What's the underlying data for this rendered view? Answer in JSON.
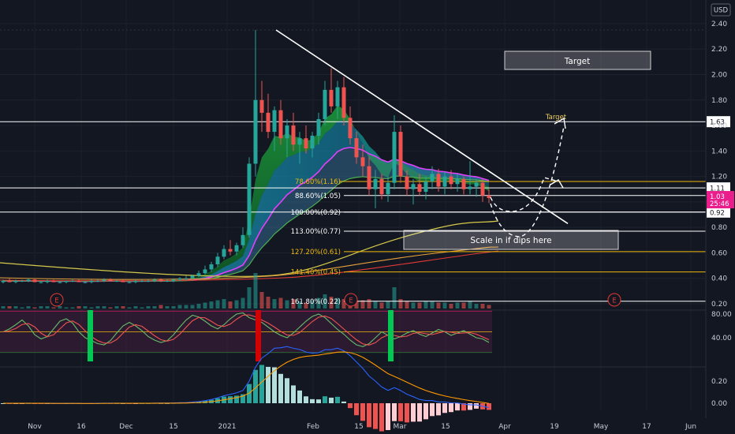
{
  "currency_label": "USD",
  "colors": {
    "up": "#26a69a",
    "down": "#ef5350",
    "bg": "#131722",
    "fib_yellow": "#f0b90b",
    "price_tag": "#e91e8c",
    "macd": "#2962ff",
    "signal": "#ff9800"
  },
  "chart_data": [
    {
      "type": "candlestick",
      "price_axis": [
        "2.40",
        "2.20",
        "2.00",
        "1.80",
        "1.60",
        "1.40",
        "1.20",
        "1.00",
        "0.80",
        "0.60",
        "0.40",
        "0.20"
      ],
      "time_axis": [
        "Nov",
        "16",
        "Dec",
        "15",
        "2021",
        "Feb",
        "15",
        "Mar",
        "15",
        "Apr",
        "19",
        "May",
        "17",
        "Jun"
      ],
      "ylim": [
        0.2,
        2.4
      ],
      "candles": [
        [
          0.37,
          0.39,
          0.36,
          0.38
        ],
        [
          0.38,
          0.4,
          0.37,
          0.37
        ],
        [
          0.37,
          0.39,
          0.36,
          0.38
        ],
        [
          0.38,
          0.39,
          0.37,
          0.38
        ],
        [
          0.38,
          0.4,
          0.37,
          0.39
        ],
        [
          0.39,
          0.4,
          0.37,
          0.37
        ],
        [
          0.37,
          0.38,
          0.36,
          0.37
        ],
        [
          0.37,
          0.39,
          0.36,
          0.38
        ],
        [
          0.38,
          0.39,
          0.37,
          0.37
        ],
        [
          0.37,
          0.38,
          0.36,
          0.37
        ],
        [
          0.37,
          0.38,
          0.36,
          0.38
        ],
        [
          0.38,
          0.39,
          0.37,
          0.38
        ],
        [
          0.38,
          0.39,
          0.37,
          0.37
        ],
        [
          0.37,
          0.38,
          0.36,
          0.37
        ],
        [
          0.37,
          0.39,
          0.36,
          0.38
        ],
        [
          0.38,
          0.39,
          0.37,
          0.38
        ],
        [
          0.38,
          0.4,
          0.37,
          0.39
        ],
        [
          0.39,
          0.4,
          0.38,
          0.38
        ],
        [
          0.38,
          0.39,
          0.37,
          0.38
        ],
        [
          0.38,
          0.39,
          0.37,
          0.37
        ],
        [
          0.37,
          0.38,
          0.36,
          0.37
        ],
        [
          0.37,
          0.39,
          0.36,
          0.38
        ],
        [
          0.38,
          0.39,
          0.37,
          0.38
        ],
        [
          0.38,
          0.39,
          0.37,
          0.38
        ],
        [
          0.38,
          0.4,
          0.37,
          0.39
        ],
        [
          0.39,
          0.4,
          0.37,
          0.38
        ],
        [
          0.38,
          0.39,
          0.37,
          0.38
        ],
        [
          0.38,
          0.4,
          0.37,
          0.39
        ],
        [
          0.39,
          0.41,
          0.38,
          0.4
        ],
        [
          0.4,
          0.42,
          0.39,
          0.4
        ],
        [
          0.4,
          0.43,
          0.39,
          0.42
        ],
        [
          0.42,
          0.46,
          0.41,
          0.44
        ],
        [
          0.44,
          0.5,
          0.43,
          0.47
        ],
        [
          0.47,
          0.53,
          0.45,
          0.51
        ],
        [
          0.51,
          0.6,
          0.49,
          0.57
        ],
        [
          0.57,
          0.66,
          0.55,
          0.63
        ],
        [
          0.63,
          0.7,
          0.58,
          0.61
        ],
        [
          0.61,
          0.68,
          0.58,
          0.66
        ],
        [
          0.66,
          0.8,
          0.64,
          0.74
        ],
        [
          0.74,
          1.35,
          0.72,
          1.3
        ],
        [
          1.3,
          2.35,
          1.2,
          1.8
        ],
        [
          1.8,
          1.95,
          1.55,
          1.7
        ],
        [
          1.7,
          1.85,
          1.5,
          1.55
        ],
        [
          1.55,
          1.75,
          1.4,
          1.72
        ],
        [
          1.72,
          1.8,
          1.45,
          1.5
        ],
        [
          1.5,
          1.65,
          1.35,
          1.6
        ],
        [
          1.6,
          1.7,
          1.4,
          1.45
        ],
        [
          1.45,
          1.55,
          1.3,
          1.5
        ],
        [
          1.5,
          1.6,
          1.38,
          1.42
        ],
        [
          1.42,
          1.55,
          1.35,
          1.52
        ],
        [
          1.52,
          1.7,
          1.45,
          1.65
        ],
        [
          1.65,
          1.95,
          1.6,
          1.88
        ],
        [
          1.88,
          2.05,
          1.7,
          1.75
        ],
        [
          1.75,
          1.95,
          1.65,
          1.9
        ],
        [
          1.9,
          1.98,
          1.6,
          1.66
        ],
        [
          1.66,
          1.75,
          1.45,
          1.5
        ],
        [
          1.5,
          1.55,
          1.3,
          1.35
        ],
        [
          1.35,
          1.45,
          1.2,
          1.28
        ],
        [
          1.28,
          1.35,
          1.05,
          1.1
        ],
        [
          1.1,
          1.25,
          0.95,
          1.18
        ],
        [
          1.18,
          1.22,
          1.02,
          1.06
        ],
        [
          1.06,
          1.2,
          1.0,
          1.15
        ],
        [
          1.15,
          1.68,
          1.1,
          1.55
        ],
        [
          1.55,
          1.6,
          1.15,
          1.2
        ],
        [
          1.2,
          1.25,
          1.05,
          1.1
        ],
        [
          1.1,
          1.18,
          0.98,
          1.14
        ],
        [
          1.14,
          1.22,
          1.05,
          1.08
        ],
        [
          1.08,
          1.2,
          1.02,
          1.16
        ],
        [
          1.16,
          1.28,
          1.1,
          1.22
        ],
        [
          1.22,
          1.26,
          1.08,
          1.12
        ],
        [
          1.12,
          1.24,
          1.06,
          1.2
        ],
        [
          1.2,
          1.25,
          1.1,
          1.14
        ],
        [
          1.14,
          1.22,
          1.08,
          1.18
        ],
        [
          1.18,
          1.2,
          1.06,
          1.1
        ],
        [
          1.1,
          1.32,
          1.06,
          1.12
        ],
        [
          1.12,
          1.18,
          1.04,
          1.15
        ],
        [
          1.15,
          1.18,
          1.0,
          1.05
        ],
        [
          1.05,
          1.1,
          0.99,
          1.03
        ]
      ],
      "volume": [
        2,
        2,
        2,
        1,
        2,
        1,
        2,
        2,
        1,
        2,
        1,
        1,
        2,
        2,
        1,
        2,
        2,
        1,
        2,
        2,
        1,
        2,
        1,
        2,
        2,
        3,
        2,
        2,
        3,
        3,
        3,
        4,
        5,
        6,
        7,
        8,
        6,
        7,
        9,
        18,
        30,
        14,
        10,
        8,
        9,
        7,
        8,
        6,
        5,
        7,
        9,
        12,
        10,
        9,
        8,
        7,
        6,
        7,
        8,
        6,
        5,
        6,
        18,
        8,
        6,
        5,
        5,
        6,
        6,
        5,
        5,
        4,
        5,
        5,
        6,
        4,
        4,
        3
      ],
      "levels": [
        {
          "label": "1.63"
        },
        {
          "label": "1.11"
        },
        {
          "label": "0.92"
        }
      ],
      "price_tag": {
        "value": "1.03",
        "countdown": "25:46"
      },
      "fib_levels": [
        {
          "label": "78.60%(1.16)",
          "price": 1.16
        },
        {
          "label": "88.60%(1.05)",
          "price": 1.05
        },
        {
          "label": "100.00%(0.92)",
          "price": 0.92
        },
        {
          "label": "113.00%(0.77)",
          "price": 0.77
        },
        {
          "label": "127.20%(0.61)",
          "price": 0.61
        },
        {
          "label": "141.40%(0.45)",
          "price": 0.45
        },
        {
          "label": "161.80%(0.22)",
          "price": 0.22
        }
      ],
      "annotations": {
        "target_box": "Target",
        "target_small": "Target",
        "scale_in": "Scale in if dips here"
      },
      "earnings_markers": [
        "E",
        "E",
        "E"
      ]
    },
    {
      "type": "line",
      "name": "oscillator",
      "ylabels": [
        "80.00",
        "40.00"
      ],
      "ylim": [
        0,
        100
      ]
    },
    {
      "type": "bar",
      "name": "macd",
      "ylabels": [
        "0.20",
        "0.00"
      ],
      "ylim": [
        -0.12,
        0.3
      ]
    }
  ]
}
